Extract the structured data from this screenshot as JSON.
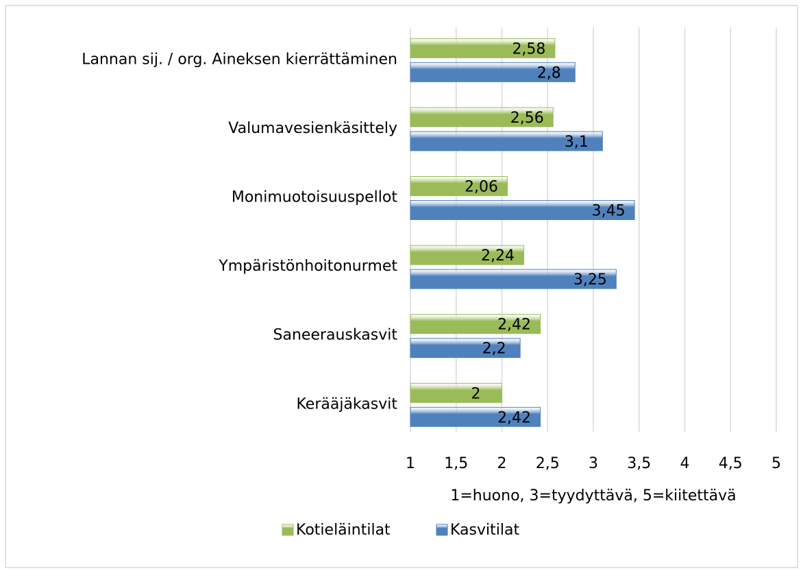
{
  "chart_data": {
    "type": "bar",
    "orientation": "horizontal",
    "categories": [
      "Lannan sij. / org. Aineksen kierrättäminen",
      "Valumavesienkäsittely",
      "Monimuotoisuuspellot",
      "Ympäristönhoitonurmet",
      "Saneerauskasvit",
      "Kerääjäkasvit"
    ],
    "series": [
      {
        "name": "Kotieläintilat",
        "color": "#9bbb59",
        "values": [
          2.58,
          2.56,
          2.06,
          2.24,
          2.42,
          2
        ],
        "value_labels": [
          "2,58",
          "2,56",
          "2,06",
          "2,24",
          "2,42",
          "2"
        ]
      },
      {
        "name": "Kasvitilat",
        "color": "#4f81bd",
        "values": [
          2.8,
          3.1,
          3.45,
          3.25,
          2.2,
          2.42
        ],
        "value_labels": [
          "2,8",
          "3,1",
          "3,45",
          "3,25",
          "2,2",
          "2,42"
        ]
      }
    ],
    "xlabel": "1=huono, 3=tyydyttävä, 5=kiitettävä",
    "xlim": [
      1,
      5
    ],
    "xticks": [
      1,
      {
        "value": 1.5,
        "label": "1,5"
      },
      2,
      {
        "value": 2.5,
        "label": "2,5"
      },
      3,
      {
        "value": 3.5,
        "label": "3,5"
      },
      4,
      {
        "value": 4.5,
        "label": "4,5"
      },
      5
    ],
    "grid": true,
    "legend": "bottom"
  }
}
